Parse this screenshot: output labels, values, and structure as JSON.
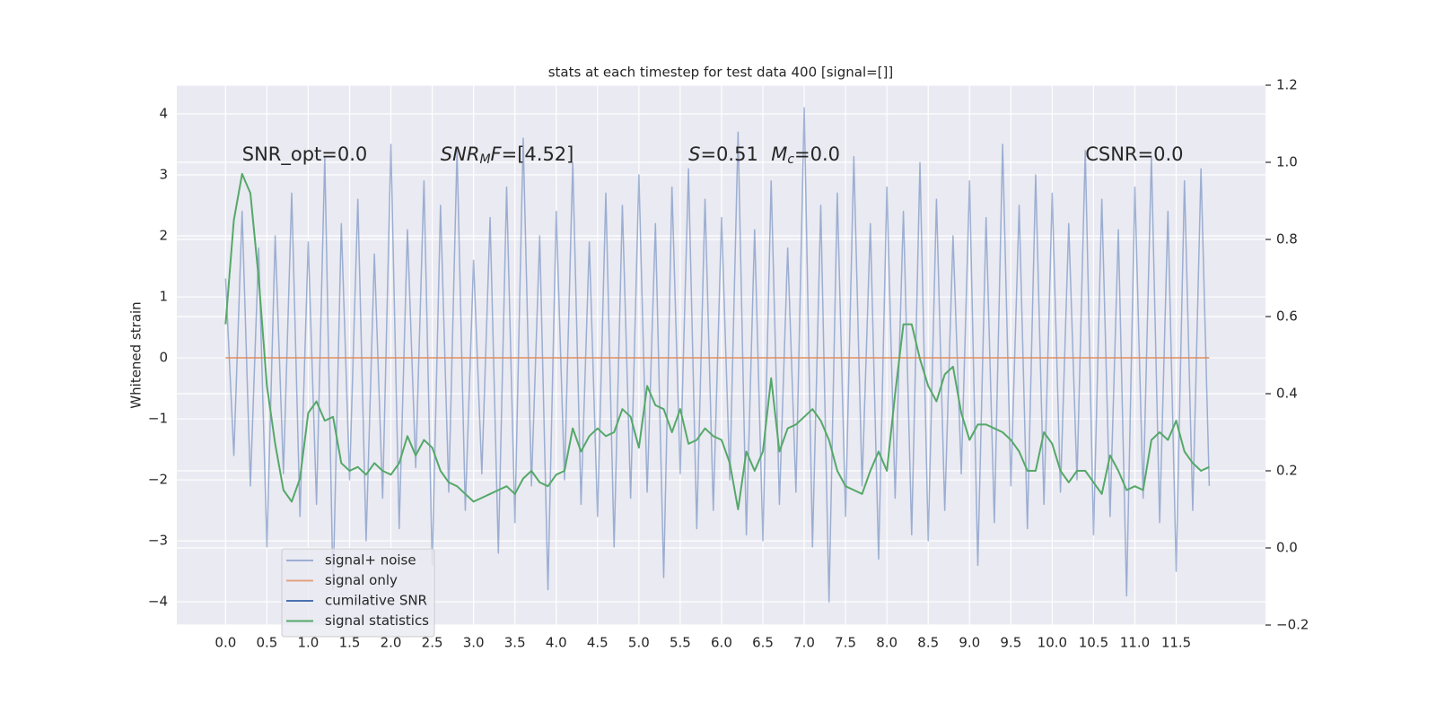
{
  "chart_data": {
    "type": "line",
    "title": "stats at each timestep for test data 400 [signal=[]]",
    "ylabel": "Whitened strain",
    "x": [
      0.0,
      0.1,
      0.2,
      0.3,
      0.4,
      0.5,
      0.6,
      0.7,
      0.8,
      0.9,
      1.0,
      1.1,
      1.2,
      1.3,
      1.4,
      1.5,
      1.6,
      1.7,
      1.8,
      1.9,
      2.0,
      2.1,
      2.2,
      2.3,
      2.4,
      2.5,
      2.6,
      2.7,
      2.8,
      2.9,
      3.0,
      3.1,
      3.2,
      3.3,
      3.4,
      3.5,
      3.6,
      3.7,
      3.8,
      3.9,
      4.0,
      4.1,
      4.2,
      4.3,
      4.4,
      4.5,
      4.6,
      4.7,
      4.8,
      4.9,
      5.0,
      5.1,
      5.2,
      5.3,
      5.4,
      5.5,
      5.6,
      5.7,
      5.8,
      5.9,
      6.0,
      6.1,
      6.2,
      6.3,
      6.4,
      6.5,
      6.6,
      6.7,
      6.8,
      6.9,
      7.0,
      7.1,
      7.2,
      7.3,
      7.4,
      7.5,
      7.6,
      7.7,
      7.8,
      7.9,
      8.0,
      8.1,
      8.2,
      8.3,
      8.4,
      8.5,
      8.6,
      8.7,
      8.8,
      8.9,
      9.0,
      9.1,
      9.2,
      9.3,
      9.4,
      9.5,
      9.6,
      9.7,
      9.8,
      9.9,
      10.0,
      10.1,
      10.2,
      10.3,
      10.4,
      10.5,
      10.6,
      10.7,
      10.8,
      10.9,
      11.0,
      11.1,
      11.2,
      11.3,
      11.4,
      11.5,
      11.6,
      11.7,
      11.8,
      11.9
    ],
    "series": [
      {
        "name": "signal+ noise",
        "color": "#4c72b0",
        "values": [
          1.3,
          -1.6,
          2.4,
          -2.1,
          1.8,
          -3.1,
          2.0,
          -1.9,
          2.7,
          -2.6,
          1.9,
          -2.4,
          3.3,
          -3.8,
          2.2,
          -2.0,
          2.6,
          -3.0,
          1.7,
          -2.3,
          3.5,
          -2.8,
          2.1,
          -1.8,
          2.9,
          -3.4,
          2.5,
          -2.2,
          3.4,
          -2.5,
          1.6,
          -1.9,
          2.3,
          -3.2,
          2.8,
          -2.7,
          3.6,
          -2.1,
          2.0,
          -3.8,
          2.4,
          -2.0,
          3.2,
          -2.4,
          1.9,
          -2.6,
          2.7,
          -3.1,
          2.5,
          -2.3,
          3.0,
          -2.2,
          2.2,
          -3.6,
          2.8,
          -1.9,
          3.1,
          -2.8,
          2.6,
          -2.5,
          2.3,
          -2.0,
          3.7,
          -2.9,
          2.1,
          -3.0,
          2.9,
          -2.4,
          1.8,
          -2.2,
          4.1,
          -3.1,
          2.5,
          -4.0,
          2.7,
          -2.6,
          3.3,
          -2.1,
          2.2,
          -3.3,
          2.8,
          -2.3,
          2.4,
          -2.9,
          3.2,
          -3.0,
          2.6,
          -2.5,
          2.0,
          -1.9,
          2.9,
          -3.4,
          2.3,
          -2.7,
          3.5,
          -2.1,
          2.5,
          -2.8,
          3.0,
          -2.4,
          2.7,
          -2.2,
          2.2,
          -2.0,
          3.4,
          -2.9,
          2.6,
          -2.6,
          2.1,
          -3.9,
          2.8,
          -2.3,
          3.3,
          -2.7,
          2.4,
          -3.5,
          2.9,
          -2.5,
          3.1,
          -2.1
        ]
      },
      {
        "name": "signal only",
        "color": "#dd8452",
        "values": [
          0,
          0,
          0,
          0,
          0,
          0,
          0,
          0,
          0,
          0,
          0,
          0,
          0,
          0,
          0,
          0,
          0,
          0,
          0,
          0,
          0,
          0,
          0,
          0,
          0,
          0,
          0,
          0,
          0,
          0,
          0,
          0,
          0,
          0,
          0,
          0,
          0,
          0,
          0,
          0,
          0,
          0,
          0,
          0,
          0,
          0,
          0,
          0,
          0,
          0,
          0,
          0,
          0,
          0,
          0,
          0,
          0,
          0,
          0,
          0,
          0,
          0,
          0,
          0,
          0,
          0,
          0,
          0,
          0,
          0,
          0,
          0,
          0,
          0,
          0,
          0,
          0,
          0,
          0,
          0,
          0,
          0,
          0,
          0,
          0,
          0,
          0,
          0,
          0,
          0,
          0,
          0,
          0,
          0,
          0,
          0,
          0,
          0,
          0,
          0,
          0,
          0,
          0,
          0,
          0,
          0,
          0,
          0,
          0,
          0,
          0,
          0,
          0,
          0,
          0,
          0,
          0,
          0,
          0,
          0
        ]
      },
      {
        "name": "cumilative SNR",
        "color": "#4c72b0"
      },
      {
        "name": "signal statistics",
        "color": "#55a868",
        "axis": "y2",
        "values": [
          0.58,
          0.85,
          0.97,
          0.92,
          0.7,
          0.42,
          0.27,
          0.15,
          0.12,
          0.18,
          0.35,
          0.38,
          0.33,
          0.34,
          0.22,
          0.2,
          0.21,
          0.19,
          0.22,
          0.2,
          0.19,
          0.22,
          0.29,
          0.24,
          0.28,
          0.26,
          0.2,
          0.17,
          0.16,
          0.14,
          0.12,
          0.13,
          0.14,
          0.15,
          0.16,
          0.14,
          0.18,
          0.2,
          0.17,
          0.16,
          0.19,
          0.2,
          0.31,
          0.25,
          0.29,
          0.31,
          0.29,
          0.3,
          0.36,
          0.34,
          0.26,
          0.42,
          0.37,
          0.36,
          0.3,
          0.36,
          0.27,
          0.28,
          0.31,
          0.29,
          0.28,
          0.22,
          0.1,
          0.25,
          0.2,
          0.25,
          0.44,
          0.25,
          0.31,
          0.32,
          0.34,
          0.36,
          0.33,
          0.28,
          0.2,
          0.16,
          0.15,
          0.14,
          0.2,
          0.25,
          0.2,
          0.4,
          0.58,
          0.58,
          0.49,
          0.42,
          0.38,
          0.45,
          0.47,
          0.35,
          0.28,
          0.32,
          0.32,
          0.31,
          0.3,
          0.28,
          0.25,
          0.2,
          0.2,
          0.3,
          0.27,
          0.2,
          0.17,
          0.2,
          0.2,
          0.17,
          0.14,
          0.24,
          0.2,
          0.15,
          0.16,
          0.15,
          0.28,
          0.3,
          0.28,
          0.33,
          0.25,
          0.22,
          0.2,
          0.21
        ]
      }
    ],
    "annotations": [
      {
        "x": 0.2,
        "y": 3.32,
        "parts": [
          {
            "text": "SNR_opt=0.0"
          }
        ]
      },
      {
        "x": 2.6,
        "y": 3.32,
        "parts": [
          {
            "text": "SNR",
            "italic": true
          },
          {
            "text": "M",
            "italic": true,
            "sub": true
          },
          {
            "text": "F",
            "italic": true
          },
          {
            "text": "=[4.52]"
          }
        ]
      },
      {
        "x": 5.6,
        "y": 3.32,
        "parts": [
          {
            "text": "S",
            "italic": true
          },
          {
            "text": "=0.51"
          }
        ]
      },
      {
        "x": 6.6,
        "y": 3.32,
        "parts": [
          {
            "text": "M",
            "italic": true
          },
          {
            "text": "c",
            "italic": true,
            "sub": true
          },
          {
            "text": "=0.0"
          }
        ]
      },
      {
        "x": 10.4,
        "y": 3.32,
        "parts": [
          {
            "text": "CSNR=0.0"
          }
        ]
      }
    ],
    "xlim": [
      -0.59,
      12.58
    ],
    "xticks": [
      {
        "value": 0,
        "label": "0.0"
      },
      0.5,
      {
        "value": 1,
        "label": "1.0"
      },
      1.5,
      {
        "value": 2,
        "label": "2.0"
      },
      2.5,
      {
        "value": 3,
        "label": "3.0"
      },
      3.5,
      {
        "value": 4,
        "label": "4.0"
      },
      4.5,
      {
        "value": 5,
        "label": "5.0"
      },
      5.5,
      {
        "value": 6,
        "label": "6.0"
      },
      6.5,
      {
        "value": 7,
        "label": "7.0"
      },
      7.5,
      {
        "value": 8,
        "label": "8.0"
      },
      8.5,
      {
        "value": 9,
        "label": "9.0"
      },
      9.5,
      {
        "value": 10,
        "label": "10.0"
      },
      10.5,
      {
        "value": 11,
        "label": "11.0"
      },
      11.5
    ],
    "ylim": [
      -4.38,
      4.47
    ],
    "yticks": [
      {
        "value": -4,
        "label": "−4"
      },
      {
        "value": -3,
        "label": "−3"
      },
      {
        "value": -2,
        "label": "−2"
      },
      {
        "value": -1,
        "label": "−1"
      },
      0,
      1,
      2,
      3,
      4
    ],
    "y2lim": [
      -0.2,
      1.2
    ],
    "y2ticks": [
      {
        "value": -0.2,
        "label": "−0.2"
      },
      {
        "value": 0,
        "label": "0.0"
      },
      0.2,
      0.4,
      0.6,
      0.8,
      {
        "value": 1,
        "label": "1.0"
      },
      1.2
    ],
    "grid": true,
    "legend": "lower left"
  }
}
